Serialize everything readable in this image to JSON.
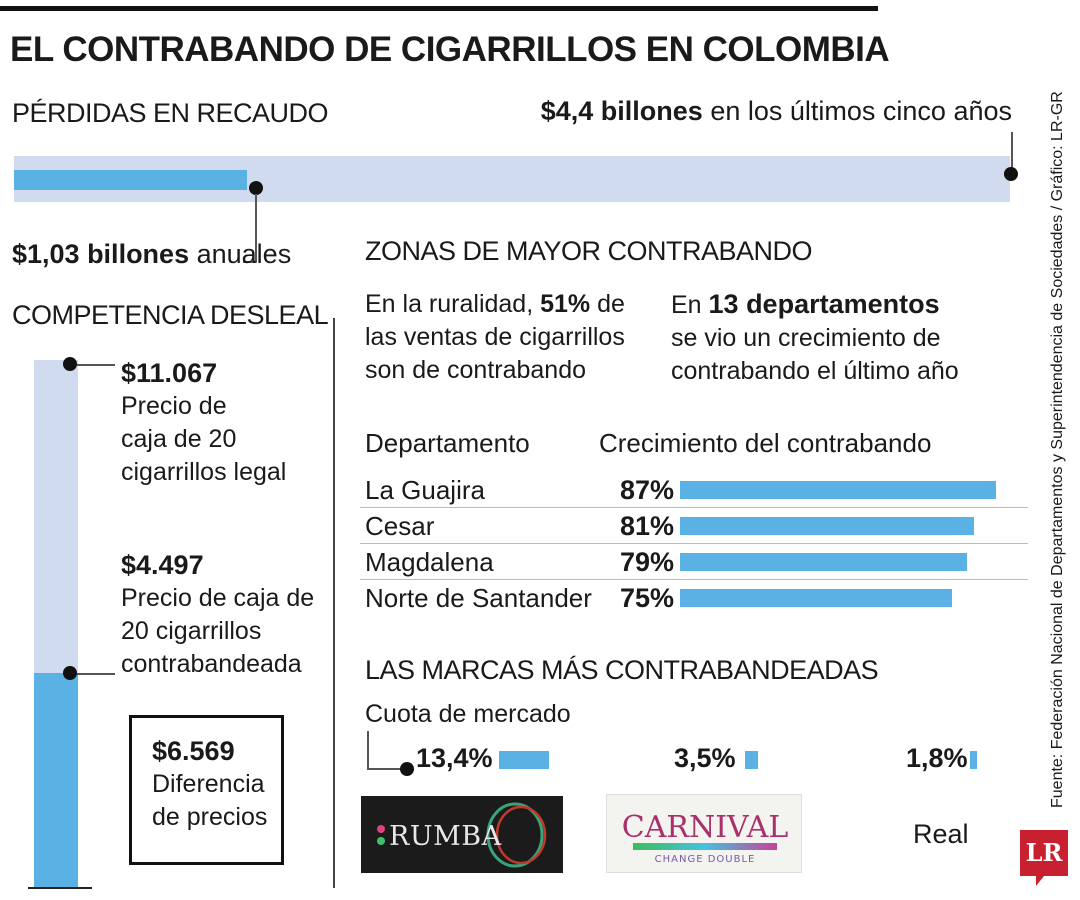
{
  "title": "EL CONTRABANDO DE CIGARRILLOS EN COLOMBIA",
  "perdidas": {
    "heading": "PÉRDIDAS EN RECAUDO",
    "total_bold": "$4,4 billones",
    "total_rest": "en los últimos cinco años",
    "annual_bold": "$1,03 billones",
    "annual_rest": "anuales",
    "annual_fraction": 0.234
  },
  "competencia": {
    "heading": "COMPETENCIA DESLEAL",
    "legal_price": "$11.067",
    "legal_l1": "Precio de",
    "legal_l2": "caja de 20",
    "legal_l3": "cigarrillos legal",
    "contra_price": "$4.497",
    "contra_l1": "Precio de caja de",
    "contra_l2": "20 cigarrillos",
    "contra_l3": "contrabandeada",
    "diff_value": "$6.569",
    "diff_l1": "Diferencia",
    "diff_l2": "de precios",
    "contra_fraction": 0.406
  },
  "zonas": {
    "heading": "ZONAS DE MAYOR CONTRABANDO",
    "rural_l1_a": "En la ruralidad, ",
    "rural_l1_b": "51%",
    "rural_l1_c": " de",
    "rural_l2": "las ventas de cigarrillos",
    "rural_l3": "son de contrabando",
    "dept_l1_a": "En ",
    "dept_l1_b": "13 departamentos",
    "dept_l2": "se vio un crecimiento de",
    "dept_l3": "contrabando el último año",
    "col_dept": "Departamento",
    "col_growth": "Crecimiento del contrabando"
  },
  "marcas": {
    "heading": "LAS MARCAS MÁS CONTRABANDEADAS",
    "subheading": "Cuota de mercado",
    "rumba_logo_text": "RUMBA",
    "carnival_logo_text": "CARNIVAL",
    "carnival_logo_sub": "CHANGE DOUBLE",
    "real_label": "Real"
  },
  "chart_data": [
    {
      "type": "bar",
      "title": "",
      "categories": [
        "La Guajira",
        "Cesar",
        "Magdalena",
        "Norte de Santander"
      ],
      "values": [
        87,
        81,
        79,
        75
      ],
      "labels": [
        "87%",
        "81%",
        "79%",
        "75%"
      ],
      "unit": "%"
    },
    {
      "type": "bar",
      "title": "",
      "categories": [
        "Rumba",
        "Carnival",
        "Real"
      ],
      "values": [
        13.4,
        3.5,
        1.8
      ],
      "labels": [
        "13,4%",
        "3,5%",
        "1,8%"
      ],
      "unit": "%"
    }
  ],
  "source": "Fuente: Federación Nacional de Departamentos y Superintendencia de Sociedades / Gráfico: LR-GR",
  "brand_logo": "LR",
  "colors": {
    "accent_blue": "#5ab2e4",
    "light_blue": "#d0dbef",
    "lr_red": "#c8202f"
  }
}
